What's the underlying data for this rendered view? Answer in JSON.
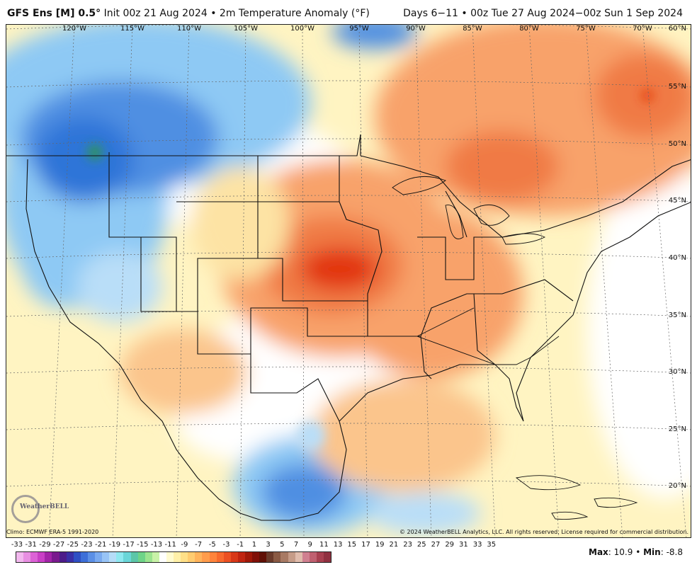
{
  "header": {
    "model": "GFS Ens [M] 0.5°",
    "init": "Init 00z 21 Aug 2024",
    "bullet": "•",
    "field": "2m Temperature Anomaly (°F)",
    "valid": "Days 6−11 • 00z Tue 27 Aug 2024−00z Sun 1 Sep 2024"
  },
  "longitudes": [
    "120°W",
    "115°W",
    "110°W",
    "105°W",
    "100°W",
    "95°W",
    "90°W",
    "85°W",
    "80°W",
    "75°W",
    "70°W"
  ],
  "latitudes": [
    "60°N",
    "55°N",
    "50°N",
    "45°N",
    "40°N",
    "35°N",
    "30°N",
    "25°N",
    "20°N"
  ],
  "footer": {
    "climo": "Climo: ECMWF ERA-5 1991-2020",
    "copyright": "© 2024 WeatherBELL Analytics, LLC. All rights reserved. License required for commercial distribution.",
    "logo": "WeatherBELL"
  },
  "legend": {
    "ticks": [
      "-33",
      "-31",
      "-29",
      "-27",
      "-25",
      "-23",
      "-21",
      "-19",
      "-17",
      "-15",
      "-13",
      "-11",
      "-9",
      "-7",
      "-5",
      "-3",
      "-1",
      "1",
      "3",
      "5",
      "7",
      "9",
      "11",
      "13",
      "15",
      "17",
      "19",
      "21",
      "23",
      "25",
      "27",
      "29",
      "31",
      "33",
      "35"
    ],
    "colors": [
      "#f2b8ee",
      "#e88fe2",
      "#dc62d6",
      "#c93fc6",
      "#a324a8",
      "#7a1a8e",
      "#4d1c8a",
      "#3a2fa6",
      "#2f4fc4",
      "#3d6fd8",
      "#5b8fe6",
      "#7aaaf0",
      "#98c4f6",
      "#b5dcf8",
      "#8fe8f0",
      "#6ad6d8",
      "#5cc6a8",
      "#6ed488",
      "#9be48f",
      "#c9f2a8",
      "#ffffff",
      "#fffbd0",
      "#fff0a8",
      "#ffe088",
      "#ffcc70",
      "#ffb45c",
      "#ff9c4c",
      "#ff843c",
      "#f86a2e",
      "#ec5022",
      "#d83818",
      "#c02410",
      "#a01808",
      "#801008",
      "#601006",
      "#6a3a2a",
      "#8a5a44",
      "#a87a64",
      "#c69c88",
      "#e0bcac",
      "#d08090",
      "#c06070",
      "#a84050",
      "#903040"
    ]
  },
  "stats": {
    "max_label": "Max",
    "max": "10.9",
    "min_label": "Min",
    "min": "-8.8",
    "sep": "•"
  },
  "colors": {
    "warm_core": "#e2360e",
    "warm": "#f7905a",
    "mild": "#fde3a4",
    "cool": "#8ec9f4",
    "cold": "#2f74d8",
    "border": "#111111"
  }
}
